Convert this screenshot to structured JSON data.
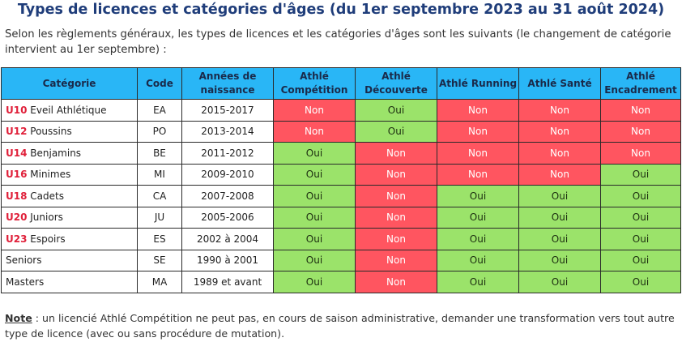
{
  "title": "Types de licences et catégories d'âges (du 1er septembre 2023 au 31 août 2024)",
  "intro": "Selon les règlements généraux, les types de licences et les catégories d'âges sont les suivants (le changement de catégorie intervient au 1er septembre) :",
  "table": {
    "headers": {
      "categorie": "Catégorie",
      "code": "Code",
      "annees": "Années de naissance",
      "competition": "Athlé Compétition",
      "decouverte": "Athlé Découverte",
      "running": "Athlé Running",
      "sante": "Athlé Santé",
      "encadrement": "Athlé Encadrement"
    },
    "rows": [
      {
        "prefix": "U10",
        "name": " Eveil Athlétique",
        "code": "EA",
        "years": "2015-2017",
        "competition": "Non",
        "decouverte": "Oui",
        "running": "Non",
        "sante": "Non",
        "encadrement": "Non"
      },
      {
        "prefix": "U12",
        "name": " Poussins",
        "code": "PO",
        "years": "2013-2014",
        "competition": "Non",
        "decouverte": "Oui",
        "running": "Non",
        "sante": "Non",
        "encadrement": "Non"
      },
      {
        "prefix": "U14",
        "name": " Benjamins",
        "code": "BE",
        "years": "2011-2012",
        "competition": "Oui",
        "decouverte": "Non",
        "running": "Non",
        "sante": "Non",
        "encadrement": "Non"
      },
      {
        "prefix": "U16",
        "name": " Minimes",
        "code": "MI",
        "years": "2009-2010",
        "competition": "Oui",
        "decouverte": "Non",
        "running": "Non",
        "sante": "Non",
        "encadrement": "Oui"
      },
      {
        "prefix": "U18",
        "name": " Cadets",
        "code": "CA",
        "years": "2007-2008",
        "competition": "Oui",
        "decouverte": "Non",
        "running": "Oui",
        "sante": "Oui",
        "encadrement": "Oui"
      },
      {
        "prefix": "U20",
        "name": " Juniors",
        "code": "JU",
        "years": "2005-2006",
        "competition": "Oui",
        "decouverte": "Non",
        "running": "Oui",
        "sante": "Oui",
        "encadrement": "Oui"
      },
      {
        "prefix": "U23",
        "name": " Espoirs",
        "code": "ES",
        "years": "2002 à 2004",
        "competition": "Oui",
        "decouverte": "Non",
        "running": "Oui",
        "sante": "Oui",
        "encadrement": "Oui"
      },
      {
        "prefix": "",
        "name": "Seniors",
        "code": "SE",
        "years": "1990 à 2001",
        "competition": "Oui",
        "decouverte": "Non",
        "running": "Oui",
        "sante": "Oui",
        "encadrement": "Oui"
      },
      {
        "prefix": "",
        "name": "Masters",
        "code": "MA",
        "years": "1989 et avant",
        "competition": "Oui",
        "decouverte": "Non",
        "running": "Oui",
        "sante": "Oui",
        "encadrement": "Oui"
      }
    ]
  },
  "note": {
    "label": "Note",
    "text": " : un licencié Athlé Compétition ne peut pas, en cours de saison administrative, demander une transformation vers tout autre type de licence (avec ou sans procédure de mutation)."
  },
  "colors": {
    "header_bg": "#29b6f6",
    "oui_bg": "#9be36a",
    "non_bg": "#ff5560",
    "prefix": "#e0203a",
    "title": "#1f3d7a"
  }
}
